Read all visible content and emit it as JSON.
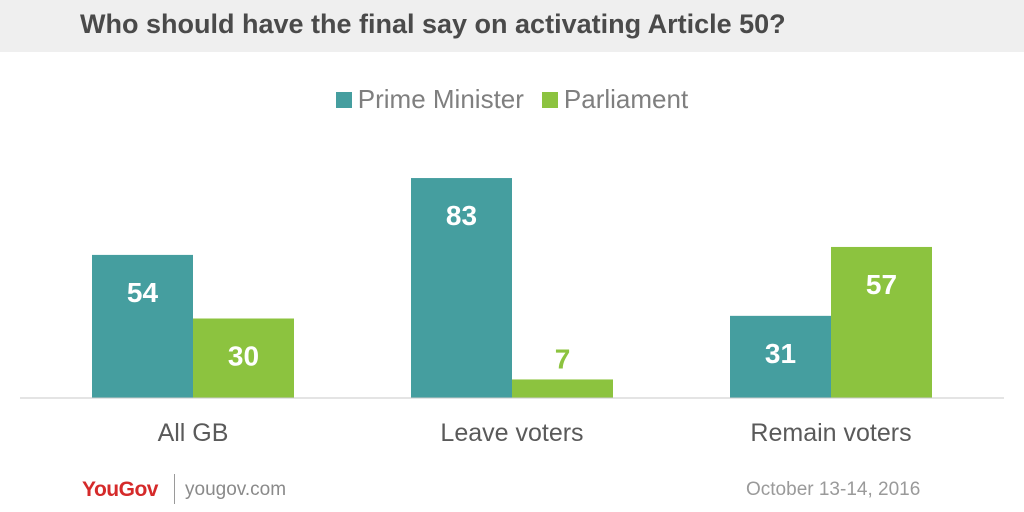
{
  "colors": {
    "prime_minister": "#459e9f",
    "parliament": "#8cc33f"
  },
  "chart_data": {
    "type": "bar",
    "title": "Who should have the final say on activating Article 50?",
    "categories": [
      "All GB",
      "Leave voters",
      "Remain voters"
    ],
    "series": [
      {
        "name": "Prime Minister",
        "values": [
          54,
          83,
          31
        ]
      },
      {
        "name": "Parliament",
        "values": [
          30,
          7,
          57
        ]
      }
    ],
    "legend": "top-center",
    "grid": false
  },
  "footer": {
    "brand": "YouGov",
    "site": "yougov.com",
    "date": "October 13-14, 2016"
  }
}
